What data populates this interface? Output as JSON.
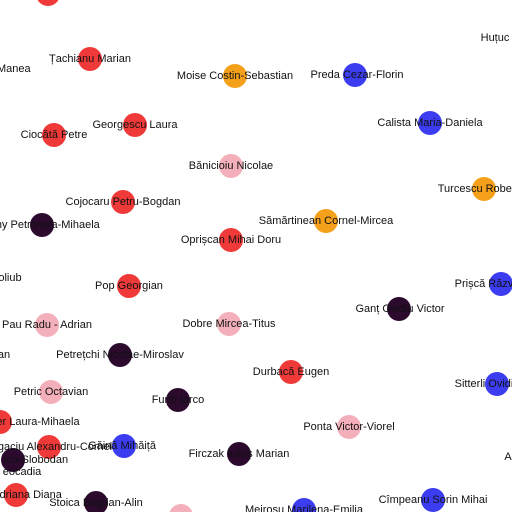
{
  "colors": {
    "red": "#f03a3a",
    "orange": "#f5a01a",
    "blue": "#3c3cf0",
    "pink": "#f4b0ba",
    "dark": "#2b0a2e"
  },
  "nodes": [
    {
      "label": "",
      "color": "red"
    },
    {
      "label": "Huțuc",
      "color": "none"
    },
    {
      "label": "-Manea",
      "color": "none"
    },
    {
      "label": "Țachianu Marian",
      "color": "red"
    },
    {
      "label": "Moise Costin-Sebastian",
      "color": "orange"
    },
    {
      "label": "Preda Cezar-Florin",
      "color": "blue"
    },
    {
      "label": "Ciocătă Petre",
      "color": "red"
    },
    {
      "label": "Georgescu Laura",
      "color": "red"
    },
    {
      "label": "Calista Maria-Daniela",
      "color": "blue"
    },
    {
      "label": "Bănicioiu Nicolae",
      "color": "pink"
    },
    {
      "label": "Turcescu Robert-N",
      "color": "orange"
    },
    {
      "label": "Cojocaru Petru-Bogdan",
      "color": "red"
    },
    {
      "label": "Sămărtinean Cornel-Mircea",
      "color": "orange"
    },
    {
      "label": "kany Petronela-Mihaela",
      "color": "dark"
    },
    {
      "label": "Oprișcan Mihai Doru",
      "color": "red"
    },
    {
      "label": "oliub",
      "color": "none"
    },
    {
      "label": "Prișcă Răzv",
      "color": "blue"
    },
    {
      "label": "Pop Georgian",
      "color": "red"
    },
    {
      "label": "Ganț Ovidiu Victor",
      "color": "dark"
    },
    {
      "label": "Pau Radu - Adrian",
      "color": "pink"
    },
    {
      "label": "Dobre Mircea-Titus",
      "color": "pink"
    },
    {
      "label": "an",
      "color": "none"
    },
    {
      "label": "Petrețchi Nicolae-Miroslav",
      "color": "dark"
    },
    {
      "label": "Durbacă Eugen",
      "color": "red"
    },
    {
      "label": "Petric Octavian",
      "color": "pink"
    },
    {
      "label": "Sitterli Ovidi",
      "color": "blue"
    },
    {
      "label": "Furio Iarco",
      "color": "dark"
    },
    {
      "label": "er Laura-Mihaela",
      "color": "red"
    },
    {
      "label": "Ponta Victor-Viorel",
      "color": "pink"
    },
    {
      "label": "ogaciu Alexandru-Cornel",
      "color": "red"
    },
    {
      "label": "Găină Mihăiță",
      "color": "blue"
    },
    {
      "label": "Firczak Iuliuș Marian",
      "color": "dark"
    },
    {
      "label": "icu-Slobodan",
      "color": "dark"
    },
    {
      "label": "eocadia",
      "color": "none"
    },
    {
      "label": "A",
      "color": "none"
    },
    {
      "label": "Adriana Diana",
      "color": "red"
    },
    {
      "label": "Stoica Bogdan-Alin",
      "color": "dark"
    },
    {
      "label": "Meirosu Marilena-Emilia",
      "color": "blue"
    },
    {
      "label": "Cîmpeanu Sorin Mihai",
      "color": "blue"
    },
    {
      "label": "",
      "color": "pink"
    }
  ]
}
